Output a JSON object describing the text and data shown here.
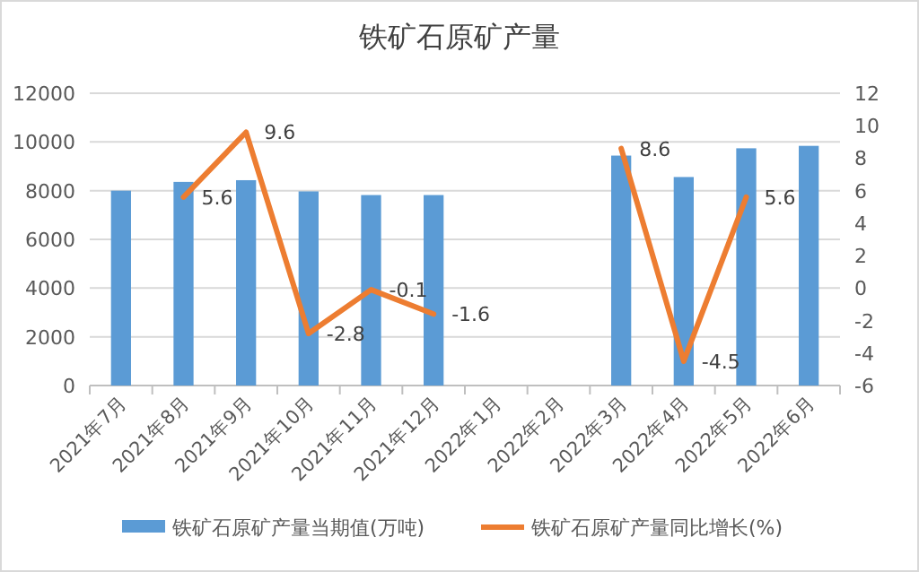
{
  "chart_data": {
    "type": "bar",
    "title": "铁矿石原矿产量",
    "categories": [
      "2021年7月",
      "2021年8月",
      "2021年9月",
      "2021年10月",
      "2021年11月",
      "2021年12月",
      "2022年1月",
      "2022年2月",
      "2022年3月",
      "2022年4月",
      "2022年5月",
      "2022年6月"
    ],
    "series": [
      {
        "name": "铁矿石原矿产量当期值(万吨)",
        "color": "#5b9bd5",
        "values": [
          8000,
          8360,
          8430,
          7970,
          7820,
          7820,
          null,
          null,
          9440,
          8560,
          9740,
          9840
        ]
      },
      {
        "name": "铁矿石原矿产量同比增长(%)",
        "type": "line",
        "axis": "y2",
        "color": "#ed7d31",
        "line_style": "solid",
        "values": [
          null,
          5.6,
          9.6,
          -2.8,
          -0.1,
          -1.6,
          null,
          null,
          8.6,
          -4.5,
          5.6,
          null
        ],
        "value_labels": [
          null,
          "5.6",
          "9.6",
          "-2.8",
          "-0.1",
          "-1.6",
          null,
          null,
          "8.6",
          "-4.5",
          "5.6",
          null
        ]
      }
    ],
    "ylim": [
      0,
      12000
    ],
    "yticks": [
      0,
      2000,
      4000,
      6000,
      8000,
      10000,
      12000
    ],
    "y2lim": [
      -6,
      12
    ],
    "y2ticks": [
      -6,
      -4,
      -2,
      0,
      2,
      4,
      6,
      8,
      10,
      12
    ],
    "grid": "y",
    "legend": "bottom",
    "marker": "none"
  }
}
